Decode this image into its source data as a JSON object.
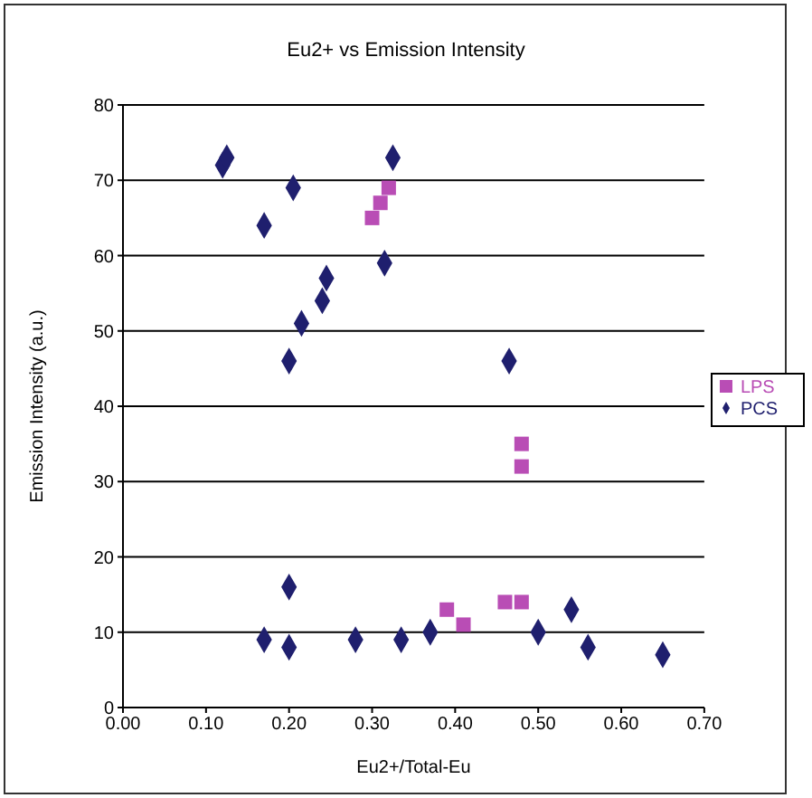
{
  "chart_data": {
    "type": "scatter",
    "title": "Eu2+ vs Emission Intensity",
    "xlabel": "Eu2+/Total-Eu",
    "ylabel": "Emission Intensity (a.u.)",
    "xlim": [
      0,
      0.7
    ],
    "xticks": [
      {
        "value": 0,
        "label": "0.00"
      },
      {
        "value": 0.1,
        "label": "0.10"
      },
      {
        "value": 0.2,
        "label": "0.20"
      },
      {
        "value": 0.3,
        "label": "0.30"
      },
      {
        "value": 0.4,
        "label": "0.40"
      },
      {
        "value": 0.5,
        "label": "0.50"
      },
      {
        "value": 0.6,
        "label": "0.60"
      },
      {
        "value": 0.7,
        "label": "0.70"
      }
    ],
    "ylim": [
      0,
      80
    ],
    "yticks": [
      0,
      10,
      20,
      30,
      40,
      50,
      60,
      70,
      80
    ],
    "grid": "y",
    "legend": "right",
    "series": [
      {
        "name": "PCS",
        "color": "#1f1f6e",
        "marker": "diamond",
        "x": [
          0.12,
          0.125,
          0.17,
          0.205,
          0.2,
          0.215,
          0.24,
          0.245,
          0.315,
          0.325,
          0.465,
          0.17,
          0.2,
          0.2,
          0.28,
          0.335,
          0.37,
          0.5,
          0.54,
          0.56,
          0.65
        ],
        "values": [
          72,
          73,
          64,
          69,
          46,
          51,
          54,
          57,
          59,
          73,
          46,
          9,
          16,
          8,
          9,
          9,
          10,
          10,
          13,
          8,
          7
        ]
      },
      {
        "name": "LPS",
        "color": "#b94db5",
        "marker": "square",
        "x": [
          0.3,
          0.31,
          0.32,
          0.48,
          0.48,
          0.39,
          0.41,
          0.46,
          0.48
        ],
        "values": [
          65,
          67,
          69,
          35,
          32,
          13,
          11,
          14,
          14
        ]
      }
    ]
  }
}
